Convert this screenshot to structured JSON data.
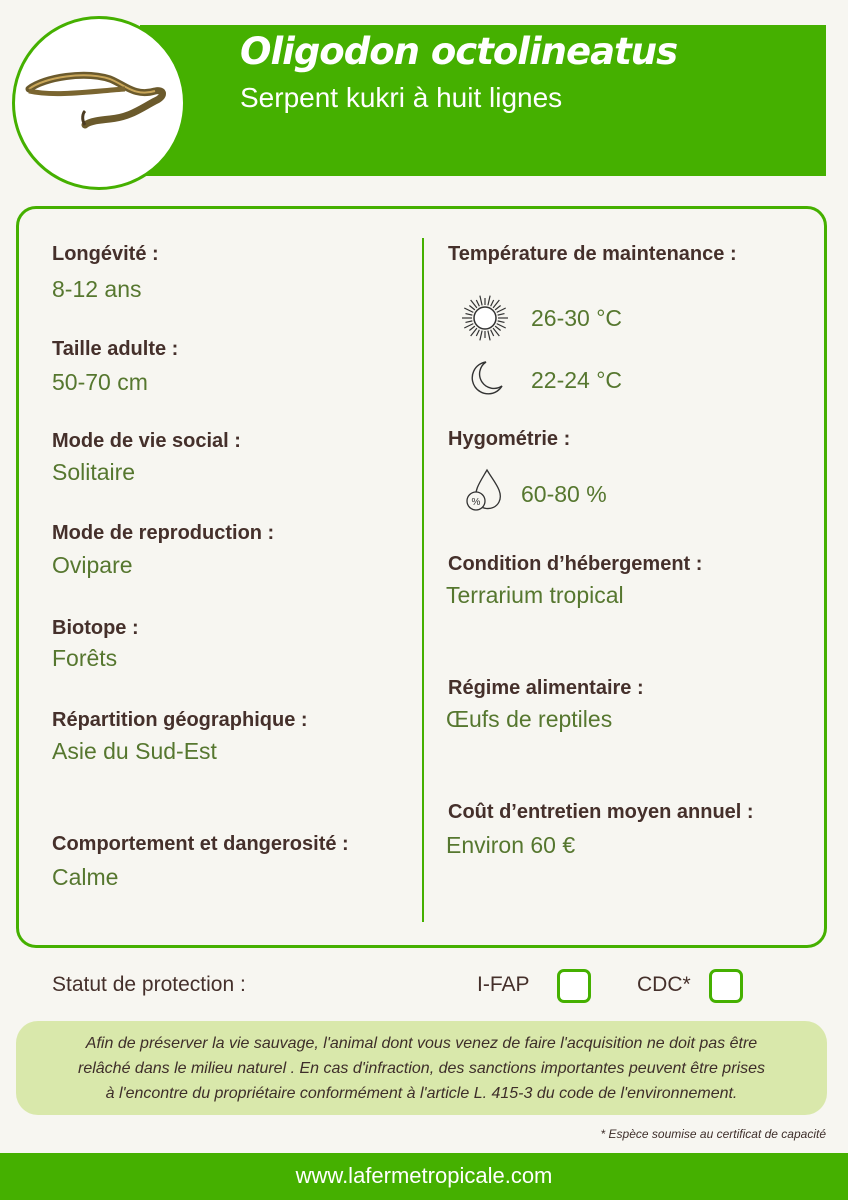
{
  "header": {
    "title": "Oligodon octolineatus",
    "subtitle": "Serpent kukri à huit lignes"
  },
  "left": [
    {
      "label": "Longévité :",
      "value": "8-12 ans"
    },
    {
      "label": "Taille adulte :",
      "value": "50-70 cm"
    },
    {
      "label": "Mode de vie social :",
      "value": "Solitaire"
    },
    {
      "label": "Mode de reproduction :",
      "value": "Ovipare"
    },
    {
      "label": "Biotope :",
      "value": "Forêts"
    },
    {
      "label": "Répartition géographique :",
      "value": "Asie du Sud-Est"
    },
    {
      "label": "Comportement et dangerosité :",
      "value": "Calme"
    }
  ],
  "right": {
    "temperature": {
      "label": "Température de maintenance :",
      "day": "26-30 °C",
      "night": "22-24 °C"
    },
    "humidity": {
      "label": "Hygométrie :",
      "value": "60-80 %"
    },
    "housing": {
      "label": "Condition d’hébergement :",
      "value": "Terrarium tropical"
    },
    "diet": {
      "label": "Régime alimentaire :",
      "value": "Œufs de reptiles"
    },
    "cost": {
      "label": "Coût d’entretien moyen annuel :",
      "value": "Environ 60 €"
    }
  },
  "status": {
    "label": "Statut de protection :",
    "ifap": "I-FAP",
    "cdc": "CDC*"
  },
  "note": [
    "Afin de préserver la vie sauvage, l'animal dont vous venez de faire l'acquisition ne doit pas être",
    "relâché dans le milieu naturel . En cas d'infraction, des sanctions importantes peuvent être prises",
    "à l'encontre du propriétaire conformément à l'article L. 415-3 du code de l'environnement."
  ],
  "footnote": "* Espèce soumise au certificat de capacité",
  "footer": "www.lafermetropicale.com",
  "colors": {
    "brand": "#45b000",
    "note_bg": "#d9e8ab",
    "value": "#56772f",
    "label": "#45302b"
  }
}
